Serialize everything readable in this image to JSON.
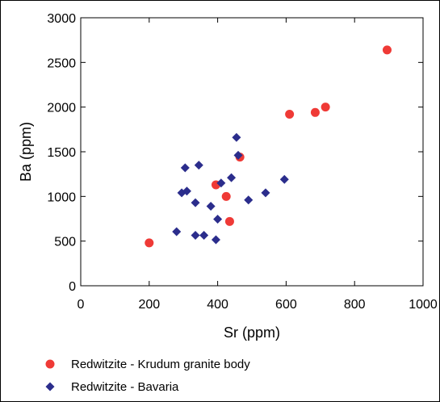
{
  "chart_data": {
    "type": "scatter",
    "title": "",
    "xlabel": "Sr (ppm)",
    "ylabel": "Ba (ppm)",
    "xlim": [
      0,
      1000
    ],
    "ylim": [
      0,
      3000
    ],
    "xticks": [
      "0",
      "200",
      "400",
      "600",
      "800",
      "1000"
    ],
    "yticks": [
      "0",
      "500",
      "1000",
      "1500",
      "2000",
      "2500",
      "3000"
    ],
    "grid": false,
    "legend_placement": "bottom-left",
    "series": [
      {
        "name": "Redwitzite - Krudum granite body",
        "marker": "circle",
        "color": "#ef3a36",
        "points": [
          [
            200,
            480
          ],
          [
            395,
            1130
          ],
          [
            425,
            1000
          ],
          [
            435,
            720
          ],
          [
            465,
            1440
          ],
          [
            610,
            1920
          ],
          [
            685,
            1940
          ],
          [
            715,
            2000
          ],
          [
            895,
            2640
          ]
        ]
      },
      {
        "name": "Redwitzite - Bavaria",
        "marker": "diamond",
        "color": "#2b2d8c",
        "points": [
          [
            280,
            605
          ],
          [
            295,
            1040
          ],
          [
            305,
            1320
          ],
          [
            310,
            1060
          ],
          [
            335,
            930
          ],
          [
            335,
            565
          ],
          [
            345,
            1350
          ],
          [
            360,
            565
          ],
          [
            380,
            890
          ],
          [
            395,
            515
          ],
          [
            400,
            745
          ],
          [
            410,
            1150
          ],
          [
            440,
            1210
          ],
          [
            455,
            1660
          ],
          [
            460,
            1460
          ],
          [
            490,
            960
          ],
          [
            540,
            1040
          ],
          [
            595,
            1190
          ]
        ]
      }
    ]
  }
}
